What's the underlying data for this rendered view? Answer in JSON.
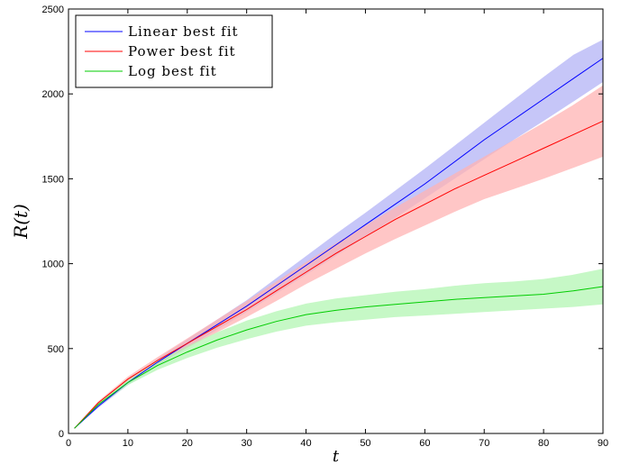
{
  "chart_data": {
    "type": "line",
    "xlabel": "t",
    "ylabel": "R(t)",
    "xlim": [
      0,
      90
    ],
    "ylim": [
      0,
      2500
    ],
    "xticks": [
      0,
      10,
      20,
      30,
      40,
      50,
      60,
      70,
      80,
      90
    ],
    "yticks": [
      0,
      500,
      1000,
      1500,
      2000,
      2500
    ],
    "grid": false,
    "legend_position": "top-left",
    "series": [
      {
        "name": "Linear best fit",
        "color": "#0000ff",
        "band_color": "#b3b3f5",
        "x": [
          1,
          5,
          10,
          15,
          20,
          25,
          30,
          35,
          40,
          45,
          50,
          55,
          60,
          65,
          70,
          75,
          80,
          85,
          90
        ],
        "y": [
          30,
          160,
          300,
          420,
          530,
          640,
          750,
          870,
          990,
          1110,
          1230,
          1350,
          1470,
          1600,
          1730,
          1850,
          1970,
          2090,
          2210
        ],
        "lower": [
          30,
          150,
          285,
          400,
          505,
          610,
          715,
          825,
          935,
          1045,
          1160,
          1270,
          1385,
          1500,
          1615,
          1730,
          1840,
          1955,
          2070
        ],
        "upper": [
          30,
          170,
          315,
          440,
          555,
          670,
          785,
          915,
          1045,
          1175,
          1300,
          1430,
          1560,
          1695,
          1830,
          1965,
          2100,
          2230,
          2320
        ]
      },
      {
        "name": "Power best fit",
        "color": "#ff0000",
        "band_color": "#ffb3b3",
        "x": [
          1,
          5,
          10,
          15,
          20,
          25,
          30,
          35,
          40,
          45,
          50,
          55,
          60,
          65,
          70,
          75,
          80,
          85,
          90
        ],
        "y": [
          30,
          180,
          320,
          430,
          530,
          630,
          730,
          840,
          950,
          1060,
          1160,
          1260,
          1350,
          1440,
          1520,
          1600,
          1680,
          1760,
          1840
        ],
        "lower": [
          30,
          170,
          305,
          410,
          505,
          595,
          685,
          780,
          880,
          970,
          1060,
          1145,
          1225,
          1305,
          1380,
          1440,
          1500,
          1565,
          1630
        ],
        "upper": [
          30,
          190,
          335,
          450,
          560,
          670,
          780,
          895,
          1010,
          1120,
          1225,
          1330,
          1430,
          1530,
          1630,
          1730,
          1830,
          1935,
          2050
        ]
      },
      {
        "name": "Log best fit",
        "color": "#00cc00",
        "band_color": "#b3f5b3",
        "x": [
          1,
          5,
          10,
          15,
          20,
          25,
          30,
          35,
          40,
          45,
          50,
          55,
          60,
          65,
          70,
          75,
          80,
          85,
          90
        ],
        "y": [
          30,
          170,
          300,
          400,
          480,
          550,
          610,
          660,
          700,
          725,
          745,
          760,
          775,
          790,
          800,
          810,
          820,
          840,
          865
        ],
        "lower": [
          30,
          160,
          285,
          375,
          445,
          505,
          555,
          600,
          635,
          655,
          670,
          685,
          695,
          705,
          715,
          725,
          735,
          745,
          760
        ],
        "upper": [
          30,
          180,
          315,
          425,
          515,
          595,
          665,
          720,
          765,
          795,
          815,
          835,
          850,
          870,
          885,
          895,
          910,
          935,
          970
        ]
      }
    ]
  }
}
